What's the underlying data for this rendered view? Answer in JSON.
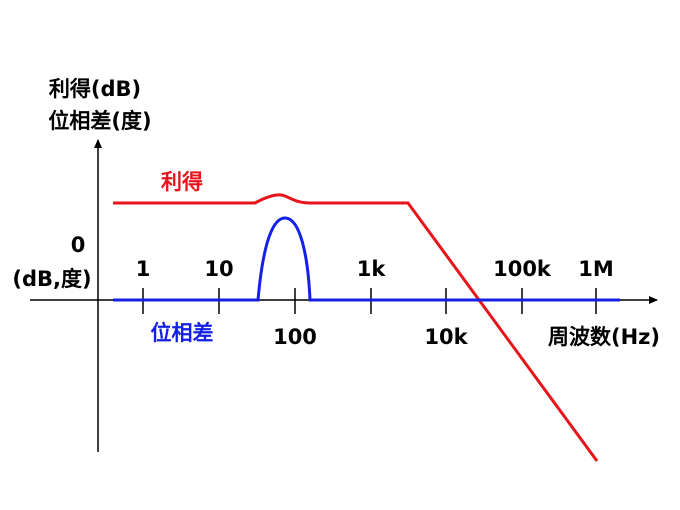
{
  "axes": {
    "y_label_lines": [
      "利得(dB)",
      "位相差(度)"
    ],
    "origin_label_lines": [
      "0",
      "(dB,度)"
    ],
    "x_label": "周波数(Hz)"
  },
  "x_ticks_upper": [
    "1",
    "10",
    "1k",
    "100k",
    "1M"
  ],
  "x_ticks_lower": [
    "100",
    "10k"
  ],
  "curves": {
    "gain": "利得",
    "phase": "位相差"
  }
}
